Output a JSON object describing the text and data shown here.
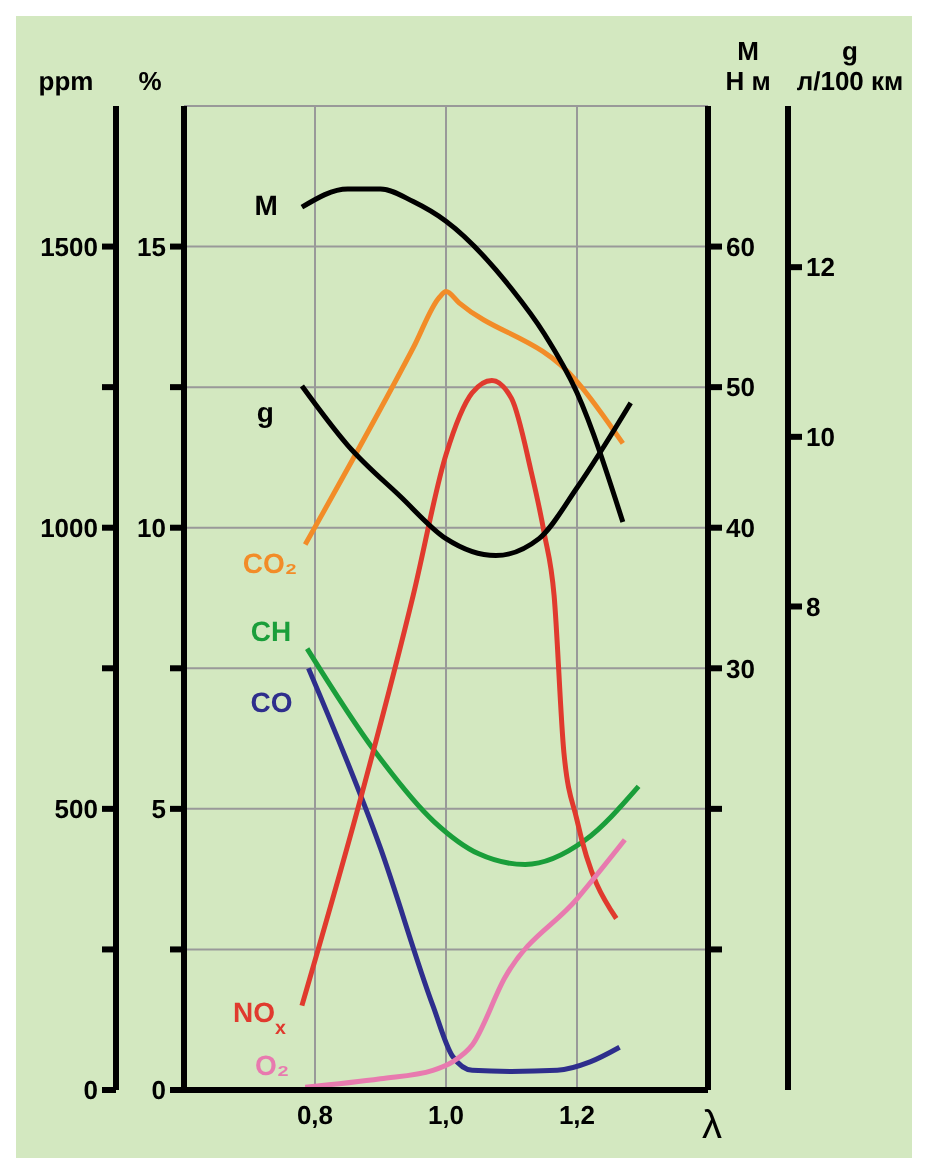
{
  "chart_data": [
    {
      "type": "line",
      "xlabel": "λ",
      "ylabel": "ppm",
      "y2label": "%",
      "marker": "none",
      "grid": true,
      "xlim": [
        0.6,
        1.4
      ],
      "xticks": [
        {
          "value": 0.8,
          "label": "0,8"
        },
        {
          "value": 1.0,
          "label": "1,0"
        },
        {
          "value": 1.2,
          "label": "1,2"
        }
      ],
      "ylim": [
        0,
        1750
      ],
      "yticks": [
        0,
        {
          "value": 250,
          "label": null
        },
        500,
        {
          "value": 750,
          "label": null
        },
        1000,
        {
          "value": 1250,
          "label": null
        },
        1500
      ],
      "y2lim": [
        0,
        17.5
      ],
      "y2ticks": [
        0,
        {
          "value": 2.5,
          "label": null
        },
        5,
        {
          "value": 7.5,
          "label": null
        },
        10,
        {
          "value": 12.5,
          "label": null
        },
        15
      ],
      "series": [
        {
          "name": "CO₂",
          "color": "#f28c28",
          "axis": "y2",
          "x": [
            0.785,
            0.95,
            0.99,
            1.0,
            1.02,
            1.2,
            1.27
          ],
          "values": [
            9.7,
            13.2,
            14.1,
            14.2,
            14.0,
            12.6,
            11.5
          ]
        },
        {
          "name": "CH",
          "color": "#1a9e3a",
          "x": [
            0.788,
            0.891,
            0.982,
            1.05,
            1.121,
            1.212,
            1.294
          ],
          "values": [
            785,
            603,
            477,
            420,
            401,
            444,
            540
          ]
        },
        {
          "name": "CO",
          "color": "#2e2e8c",
          "axis": "y2",
          "x": [
            0.79,
            0.9,
            0.98,
            1.01,
            1.04,
            1.1,
            1.17,
            1.22,
            1.265
          ],
          "values": [
            7.5,
            4.3,
            1.5,
            0.6,
            0.35,
            0.33,
            0.35,
            0.5,
            0.76
          ]
        },
        {
          "name": "NO$_{x}$",
          "color": "#e03a2e",
          "x": [
            0.78,
            0.87,
            0.95,
            1.0,
            1.04,
            1.07,
            1.1,
            1.13,
            1.15,
            1.165,
            1.18,
            1.2,
            1.26
          ],
          "values": [
            150,
            520,
            880,
            1130,
            1240,
            1262,
            1230,
            1100,
            990,
            880,
            600,
            480,
            305
          ]
        },
        {
          "name": "O₂",
          "color": "#e87aaf",
          "axis": "y2",
          "x": [
            0.785,
            0.9,
            0.98,
            1.01,
            1.04,
            1.09,
            1.2,
            1.273
          ],
          "values": [
            0.05,
            0.2,
            0.35,
            0.5,
            0.8,
            2.0,
            3.4,
            4.45
          ]
        }
      ]
    },
    {
      "type": "line",
      "ylabel": "M\nН м",
      "y2label": "g\nл/100 км",
      "marker": "none",
      "tick_labels": "y",
      "xlim": [
        0.6,
        1.4
      ],
      "ylim": [
        0,
        70
      ],
      "yticks": [
        {
          "value": 10,
          "label": null
        },
        {
          "value": 20,
          "label": null
        },
        30,
        40,
        50,
        60
      ],
      "y2lim": [
        2.3,
        13.9
      ],
      "y2ticks": [
        8,
        10,
        12
      ],
      "series": [
        {
          "name": "M",
          "color": "#000000",
          "x": [
            0.78,
            0.85,
            0.9,
            0.95,
            1.0,
            1.1,
            1.15,
            1.2,
            1.27
          ],
          "values": [
            62.8,
            64.1,
            64.1,
            63.2,
            61.8,
            57,
            53.8,
            49.6,
            40.4
          ]
        },
        {
          "name": "g",
          "color": "#000000",
          "axis": "y2",
          "x": [
            0.78,
            0.85,
            0.93,
            1.0,
            1.076,
            1.142,
            1.2,
            1.282
          ],
          "values": [
            10.6,
            9.9,
            9.3,
            8.8,
            8.6,
            8.8,
            9.4,
            10.4
          ]
        }
      ]
    }
  ]
}
